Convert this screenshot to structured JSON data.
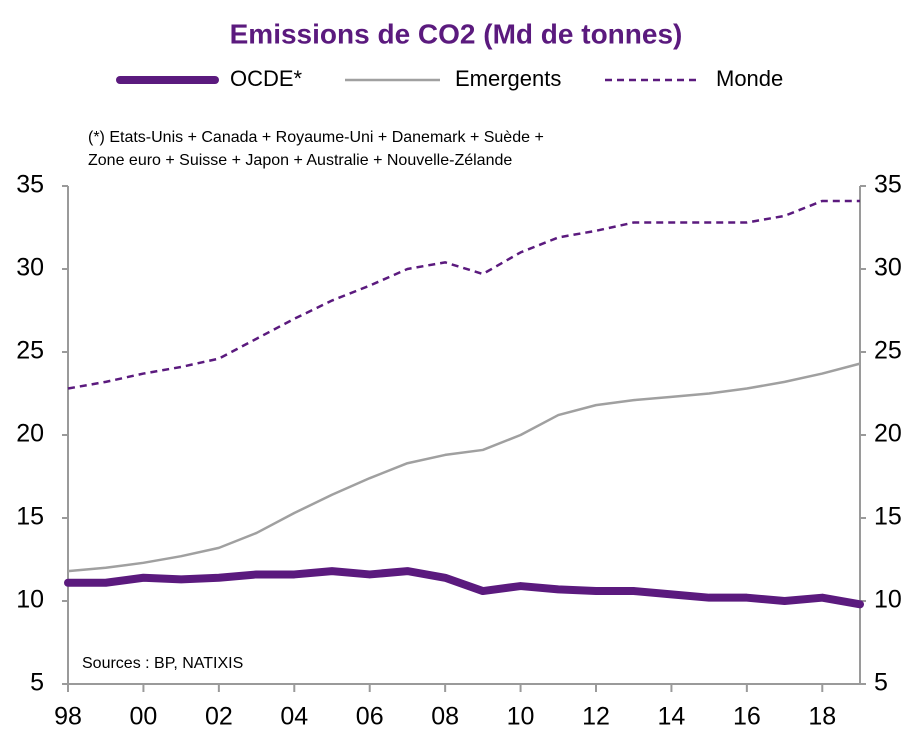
{
  "chart_data": {
    "type": "line",
    "title": "Emissions de CO2 (Md de tonnes)",
    "notes": [
      "(*) Etats-Unis + Canada + Royaume-Uni + Danemark + Suède +",
      "Zone euro + Suisse + Japon + Australie + Nouvelle-Zélande"
    ],
    "source": "Sources : BP, NATIXIS",
    "x": [
      1998,
      1999,
      2000,
      2001,
      2002,
      2003,
      2004,
      2005,
      2006,
      2007,
      2008,
      2009,
      2010,
      2011,
      2012,
      2013,
      2014,
      2015,
      2016,
      2017,
      2018,
      2019
    ],
    "series": [
      {
        "name": "OCDE*",
        "color": "#5b1a7e",
        "style": "thick",
        "values": [
          11.1,
          11.1,
          11.4,
          11.3,
          11.4,
          11.6,
          11.6,
          11.8,
          11.6,
          11.8,
          11.4,
          10.6,
          10.9,
          10.7,
          10.6,
          10.6,
          10.4,
          10.2,
          10.2,
          10.0,
          10.2,
          9.8
        ]
      },
      {
        "name": "Emergents",
        "color": "#a0a0a0",
        "style": "solid",
        "values": [
          11.8,
          12.0,
          12.3,
          12.7,
          13.2,
          14.1,
          15.3,
          16.4,
          17.4,
          18.3,
          18.8,
          19.1,
          20.0,
          21.2,
          21.8,
          22.1,
          22.3,
          22.5,
          22.8,
          23.2,
          23.7,
          24.3
        ]
      },
      {
        "name": "Monde",
        "color": "#5b1a7e",
        "style": "dashed",
        "values": [
          22.8,
          23.2,
          23.7,
          24.1,
          24.6,
          25.8,
          27.0,
          28.1,
          29.0,
          30.0,
          30.4,
          29.7,
          31.0,
          31.9,
          32.3,
          32.8,
          32.8,
          32.8,
          32.8,
          33.2,
          34.1,
          34.1
        ]
      }
    ],
    "xlim": [
      1998,
      2019
    ],
    "xticks": [
      {
        "value": 1998,
        "label": "98"
      },
      {
        "value": 2000,
        "label": "00"
      },
      {
        "value": 2002,
        "label": "02"
      },
      {
        "value": 2004,
        "label": "04"
      },
      {
        "value": 2006,
        "label": "06"
      },
      {
        "value": 2008,
        "label": "08"
      },
      {
        "value": 2010,
        "label": "10"
      },
      {
        "value": 2012,
        "label": "12"
      },
      {
        "value": 2014,
        "label": "14"
      },
      {
        "value": 2016,
        "label": "16"
      },
      {
        "value": 2018,
        "label": "18"
      }
    ],
    "ylim": [
      5,
      35
    ],
    "yticks": [
      5,
      10,
      15,
      20,
      25,
      30,
      35
    ],
    "y2lim": [
      5,
      35
    ],
    "y2ticks": [
      5,
      10,
      15,
      20,
      25,
      30,
      35
    ],
    "grid": false
  }
}
